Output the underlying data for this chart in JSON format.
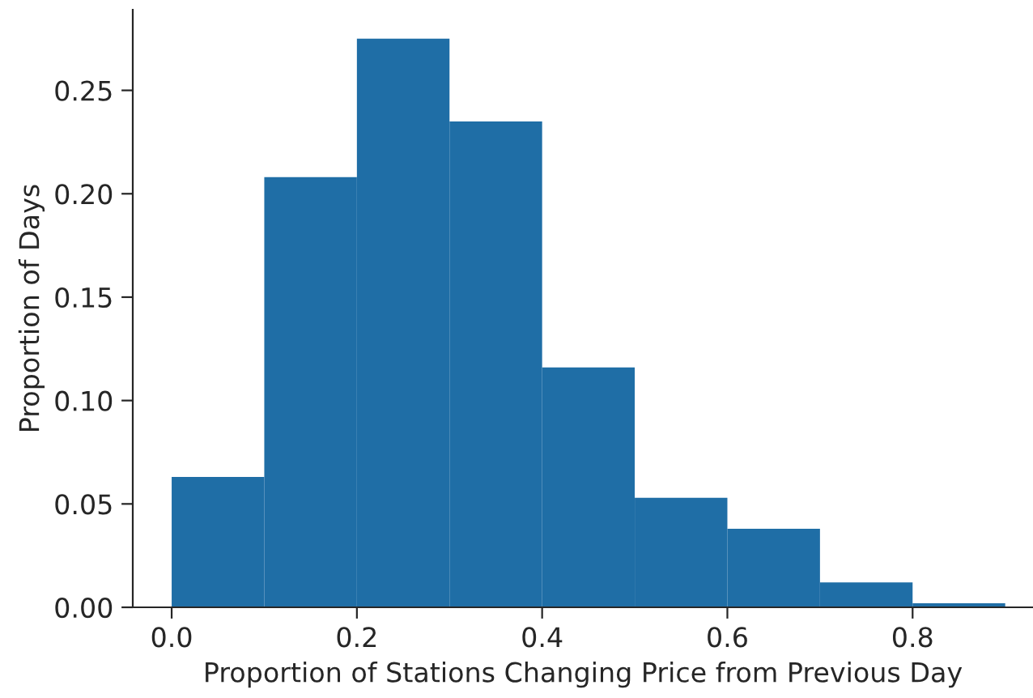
{
  "chart_data": {
    "type": "histogram",
    "xlabel": "Proportion of Stations Changing Price from Previous Day",
    "ylabel": "Proportion of Days",
    "bins": [
      0.0,
      0.1,
      0.2,
      0.3,
      0.4,
      0.5,
      0.6,
      0.7,
      0.8,
      0.9
    ],
    "values": [
      0.063,
      0.208,
      0.275,
      0.235,
      0.116,
      0.053,
      0.038,
      0.012,
      0.002
    ],
    "color": "#1f6ea6",
    "xlim": [
      -0.042,
      0.93
    ],
    "ylim": [
      0,
      0.289
    ],
    "xticks": [
      {
        "value": 0.0,
        "label": "0.0"
      },
      {
        "value": 0.2,
        "label": "0.2"
      },
      {
        "value": 0.4,
        "label": "0.4"
      },
      {
        "value": 0.6,
        "label": "0.6"
      },
      {
        "value": 0.8,
        "label": "0.8"
      }
    ],
    "yticks": [
      {
        "value": 0.0,
        "label": "0.00"
      },
      {
        "value": 0.05,
        "label": "0.05"
      },
      {
        "value": 0.1,
        "label": "0.10"
      },
      {
        "value": 0.15,
        "label": "0.15"
      },
      {
        "value": 0.2,
        "label": "0.20"
      },
      {
        "value": 0.25,
        "label": "0.25"
      }
    ],
    "grid": false,
    "legend": false
  }
}
